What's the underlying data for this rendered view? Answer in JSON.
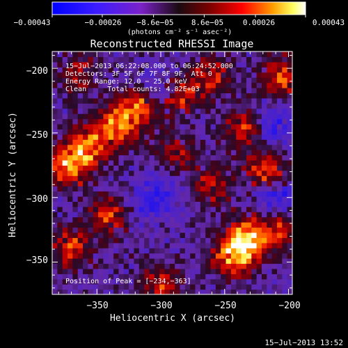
{
  "chart_data": {
    "type": "heatmap",
    "title": "Reconstructed RHESSI Image",
    "xlabel": "Heliocentric X (arcsec)",
    "ylabel": "Heliocentric Y (arcsec)",
    "xlim": [
      -385,
      -197
    ],
    "ylim": [
      -375,
      -187
    ],
    "x_ticks": [
      -350,
      -300,
      -250,
      -200
    ],
    "x_tick_labels": [
      "−350",
      "−300",
      "−250",
      "−200"
    ],
    "y_ticks": [
      -200,
      -250,
      -300,
      -350
    ],
    "y_tick_labels": [
      "−200",
      "−250",
      "−300",
      "−350"
    ],
    "colorbar": {
      "range": [
        -0.00043,
        0.00043
      ],
      "ticks": [
        -0.00043,
        -0.00026,
        -8.6e-05,
        8.6e-05,
        0.00026,
        0.00043
      ],
      "tick_labels": [
        "−0.00043",
        "−0.00026",
        "−8.6e−05",
        "8.6e−05",
        "0.00026",
        "0.00043"
      ],
      "units": "(photons cm⁻² s⁻¹ asec⁻²)"
    },
    "annotations": {
      "time_range": "15−Jul−2013 06:22:08.000 to 06:24:52.000",
      "detectors": "Detectors: 3F 5F 6F 7F 8F 9F, Att 0",
      "energy": "Energy Range: 12.0 − 25.0 keV",
      "method": "Clean     Total counts: 4.82E+03",
      "peak": "Position of Peak = [−234,−363]"
    },
    "peak_position": [
      -234,
      -363
    ],
    "bright_regions": [
      {
        "x": -243,
        "y": -345,
        "intensity": 1.0
      },
      {
        "x": -230,
        "y": -330,
        "intensity": 0.95
      },
      {
        "x": -372,
        "y": -275,
        "intensity": 0.85
      },
      {
        "x": -357,
        "y": -260,
        "intensity": 0.75
      },
      {
        "x": -335,
        "y": -245,
        "intensity": 0.8
      },
      {
        "x": -318,
        "y": -230,
        "intensity": 0.75
      },
      {
        "x": -285,
        "y": -220,
        "intensity": 0.65
      },
      {
        "x": -342,
        "y": -315,
        "intensity": 0.6
      },
      {
        "x": -370,
        "y": -340,
        "intensity": 0.6
      },
      {
        "x": -232,
        "y": -245,
        "intensity": 0.7
      },
      {
        "x": -218,
        "y": -278,
        "intensity": 0.75
      },
      {
        "x": -205,
        "y": -205,
        "intensity": 0.7
      },
      {
        "x": -260,
        "y": -205,
        "intensity": 0.5
      },
      {
        "x": -205,
        "y": -325,
        "intensity": 0.55
      },
      {
        "x": -365,
        "y": -205,
        "intensity": 0.5
      },
      {
        "x": -290,
        "y": -265,
        "intensity": 0.45
      },
      {
        "x": -300,
        "y": -370,
        "intensity": 0.55
      },
      {
        "x": -260,
        "y": -290,
        "intensity": 0.5
      }
    ],
    "dark_regions": [
      {
        "x": -305,
        "y": -300,
        "intensity": -0.6
      },
      {
        "x": -215,
        "y": -245,
        "intensity": -0.55
      },
      {
        "x": -300,
        "y": -215,
        "intensity": -0.4
      },
      {
        "x": -210,
        "y": -300,
        "intensity": -0.45
      }
    ]
  },
  "footer": {
    "timestamp": "15−Jul−2013 13:52"
  }
}
